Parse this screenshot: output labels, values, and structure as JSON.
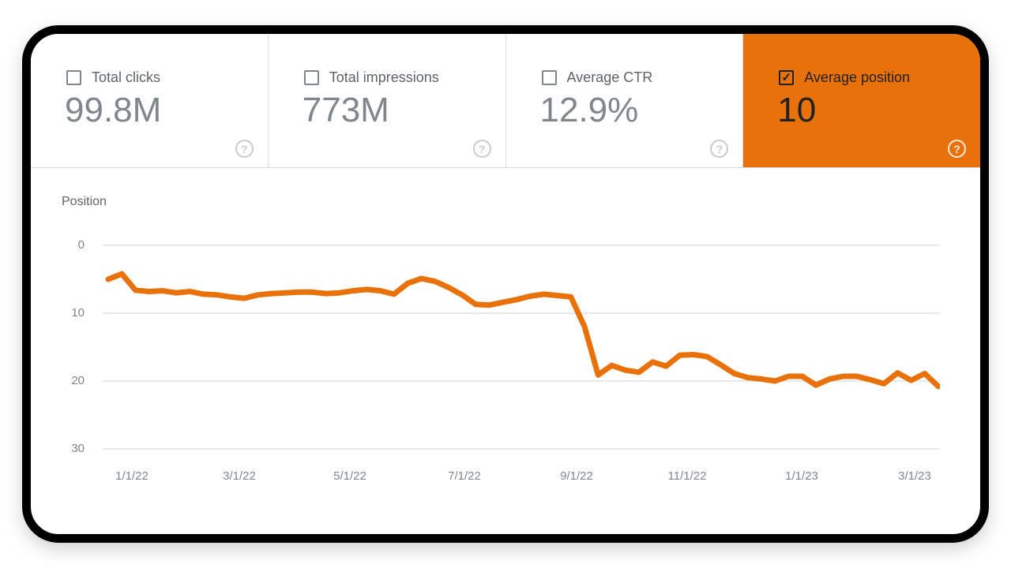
{
  "icons": {
    "help_glyph": "?",
    "checkmark": "✓"
  },
  "colors": {
    "accent_orange": "#E8710A",
    "selected_text": "#202124",
    "value_gray": "#80868b",
    "label_gray": "#5f6368",
    "grid_line": "#e6e8ea",
    "divider": "#dadce0"
  },
  "cards": [
    {
      "label": "Total clicks",
      "value": "99.8M",
      "checked": false,
      "selected": false
    },
    {
      "label": "Total impressions",
      "value": "773M",
      "checked": false,
      "selected": false
    },
    {
      "label": "Average CTR",
      "value": "12.9%",
      "checked": false,
      "selected": false
    },
    {
      "label": "Average position",
      "value": "10",
      "checked": true,
      "selected": true
    }
  ],
  "chart_data": {
    "type": "line",
    "title": "Position",
    "ylabel": "Position",
    "y_axis_inverted": true,
    "ylim": [
      0,
      30
    ],
    "y_ticks": [
      0,
      10,
      20,
      30
    ],
    "grid": "horizontal",
    "legend": "none",
    "x_tick_labels": [
      "1/1/22",
      "3/1/22",
      "5/1/22",
      "7/1/22",
      "9/1/22",
      "11/1/22",
      "1/1/23",
      "3/1/23"
    ],
    "x_unit": "weeks",
    "series": [
      {
        "name": "Average position",
        "color": "#E8710A",
        "values": [
          5.0,
          4.2,
          6.6,
          6.8,
          6.7,
          7.0,
          6.8,
          7.2,
          7.3,
          7.6,
          7.8,
          7.3,
          7.1,
          7.0,
          6.9,
          6.9,
          7.1,
          7.0,
          6.7,
          6.5,
          6.7,
          7.2,
          5.6,
          4.9,
          5.3,
          6.2,
          7.3,
          8.7,
          8.8,
          8.4,
          8.0,
          7.5,
          7.2,
          7.4,
          7.6,
          12.0,
          19.1,
          17.7,
          18.4,
          18.7,
          17.2,
          17.8,
          16.2,
          16.1,
          16.4,
          17.6,
          18.9,
          19.5,
          19.7,
          20.0,
          19.3,
          19.3,
          20.6,
          19.7,
          19.3,
          19.3,
          19.8,
          20.4,
          18.8,
          19.9,
          18.9,
          20.8
        ]
      }
    ]
  }
}
